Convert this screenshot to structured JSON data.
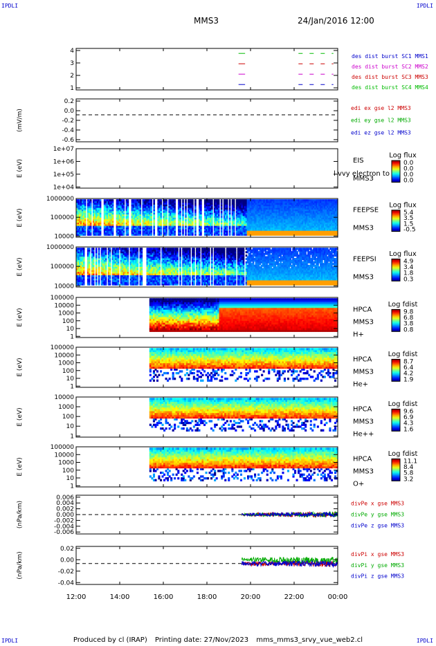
{
  "corners": {
    "tl": "IPDLI",
    "tr": "IPDLI",
    "bl": "IPDLI",
    "br": "IPDLI"
  },
  "header": {
    "spacecraft": "MMS3",
    "date": "24/Jan/2016 12:00"
  },
  "footer": {
    "produced": "Produced by cl (IRAP)",
    "printing": "Printing date: 27/Nov/2023",
    "file": "mms_mms3_srvy_vue_web2.cl"
  },
  "chart_data": {
    "type": "multi-panel time series",
    "x_time_ticks": [
      "12:00",
      "14:00",
      "16:00",
      "18:00",
      "20:00",
      "22:00",
      "00:00"
    ],
    "panels": [
      {
        "id": "burst",
        "type": "line",
        "yticks": [
          "4",
          "3",
          "2",
          "1"
        ],
        "legend": [
          {
            "label": "des dist burst SC1 MMS1",
            "color": "#0000cc"
          },
          {
            "label": "des dist burst SC2 MMS2",
            "color": "#cc00cc"
          },
          {
            "label": "des dist burst SC3 MMS3",
            "color": "#cc0000"
          },
          {
            "label": "des dist burst SC4 MMS4",
            "color": "#00bb00"
          }
        ]
      },
      {
        "id": "edi",
        "type": "line",
        "ylabel": "(mV/m)",
        "yticks": [
          "0.2",
          "0.0",
          "-0.2",
          "-0.4",
          "-0.6"
        ],
        "legend": [
          {
            "label": "edi ex gse l2 MMS3",
            "color": "#cc0000"
          },
          {
            "label": "edi ey gse l2 MMS3",
            "color": "#00aa00"
          },
          {
            "label": "edi ez gse l2 MMS3",
            "color": "#0000cc"
          }
        ]
      },
      {
        "id": "eis",
        "type": "heatmap",
        "ylabel": "E (eV)",
        "yticks": [
          "1e+07",
          "1e+06",
          "1e+05",
          "1e+04"
        ],
        "right_labels": [
          "EIS",
          "MMS3"
        ],
        "overlay_text": "l vvy electron to",
        "colorbar": {
          "title": "Log flux",
          "ticks": [
            "0.0",
            "0.0",
            "0.0",
            "0.0"
          ]
        }
      },
      {
        "id": "feepse",
        "type": "heatmap",
        "ylabel": "E (eV)",
        "yticks": [
          "1000000",
          "100000",
          "10000"
        ],
        "right_labels": [
          "FEEPSE",
          "MMS3"
        ],
        "colorbar": {
          "title": "Log flux",
          "ticks": [
            "5.4",
            "3.5",
            "1.5",
            "-0.5"
          ]
        }
      },
      {
        "id": "feepsi",
        "type": "heatmap",
        "ylabel": "E (eV)",
        "yticks": [
          "1000000",
          "100000",
          "10000"
        ],
        "right_labels": [
          "FEEPSI",
          "MMS3"
        ],
        "colorbar": {
          "title": "Log flux",
          "ticks": [
            "4.9",
            "3.4",
            "1.8",
            "0.3"
          ]
        }
      },
      {
        "id": "hpca_h",
        "type": "heatmap",
        "ylabel": "E (eV)",
        "yticks": [
          "100000",
          "10000",
          "1000",
          "100",
          "10",
          "1"
        ],
        "right_labels": [
          "HPCA",
          "MMS3",
          "H+"
        ],
        "colorbar": {
          "title": "Log fdist",
          "ticks": [
            "9.8",
            "6.8",
            "3.8",
            "0.8"
          ]
        }
      },
      {
        "id": "hpca_he",
        "type": "heatmap",
        "ylabel": "E (eV)",
        "yticks": [
          "100000",
          "10000",
          "1000",
          "100",
          "10",
          "1"
        ],
        "right_labels": [
          "HPCA",
          "MMS3",
          "He+"
        ],
        "colorbar": {
          "title": "Log fdist",
          "ticks": [
            "8.7",
            "6.4",
            "4.2",
            "1.9"
          ]
        }
      },
      {
        "id": "hpca_hepp",
        "type": "heatmap",
        "ylabel": "E (eV)",
        "yticks": [
          "10000",
          "1000",
          "100",
          "10",
          "1"
        ],
        "right_labels": [
          "HPCA",
          "MMS3",
          "He++"
        ],
        "colorbar": {
          "title": "Log fdist",
          "ticks": [
            "9.6",
            "6.9",
            "4.3",
            "1.6"
          ]
        }
      },
      {
        "id": "hpca_o",
        "type": "heatmap",
        "ylabel": "E (eV)",
        "yticks": [
          "100000",
          "10000",
          "1000",
          "100",
          "10",
          "1"
        ],
        "right_labels": [
          "HPCA",
          "MMS3",
          "O+"
        ],
        "colorbar": {
          "title": "Log fdist",
          "ticks": [
            "11.1",
            "8.4",
            "5.8",
            "3.2"
          ]
        }
      },
      {
        "id": "divpe",
        "type": "line",
        "ylabel": "(nPa/km)",
        "yticks": [
          "0.006",
          "0.004",
          "0.002",
          "0.000",
          "-0.002",
          "-0.004",
          "-0.006"
        ],
        "legend": [
          {
            "label": "divPe x gse MMS3",
            "color": "#cc0000"
          },
          {
            "label": "divPe y gse MMS3",
            "color": "#00aa00"
          },
          {
            "label": "divPe z gse MMS3",
            "color": "#0000cc"
          }
        ]
      },
      {
        "id": "divpi",
        "type": "line",
        "ylabel": "(nPa/km)",
        "yticks": [
          "0.02",
          "0.00",
          "-0.02",
          "-0.04"
        ],
        "legend": [
          {
            "label": "divPi x gse MMS3",
            "color": "#cc0000"
          },
          {
            "label": "divPi y gse MMS3",
            "color": "#00aa00"
          },
          {
            "label": "divPi z gse MMS3",
            "color": "#0000cc"
          }
        ]
      }
    ]
  }
}
